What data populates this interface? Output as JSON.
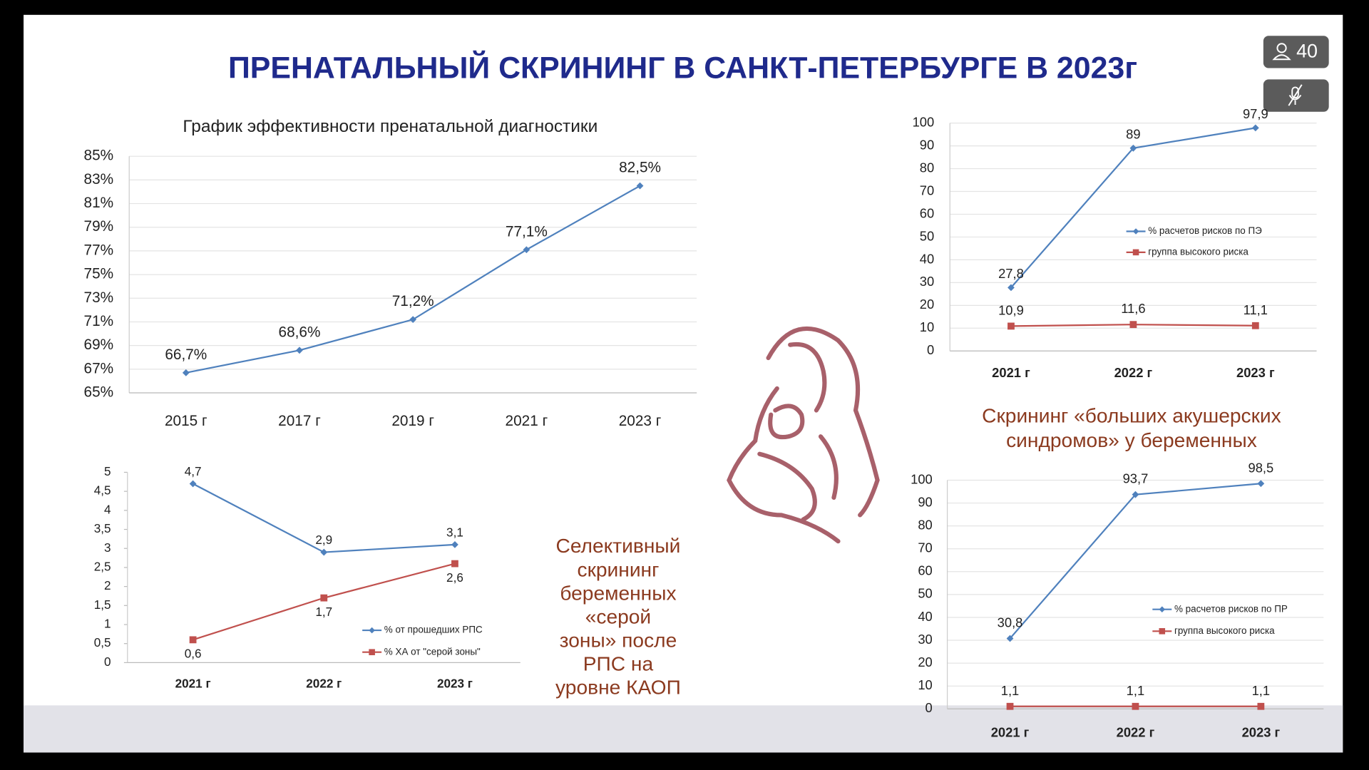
{
  "slide": {
    "title": "ПРЕНАТАЛЬНЫЙ СКРИНИНГ В САНКТ-ПЕТЕРБУРГЕ В 2023г",
    "captions": [
      {
        "lines": [
          "Скрининг «больших акушерских",
          "синдромов» у беременных"
        ]
      },
      {
        "lines": [
          "Селективный",
          "скрининг",
          "беременных",
          "«серой",
          "зоны» после",
          "РПС на",
          "уровне КАОП"
        ]
      }
    ]
  },
  "ui": {
    "participants": "40"
  },
  "chart_data": [
    {
      "type": "line",
      "title": "График эффективности пренатальной диагностики",
      "categories": [
        "2015 г",
        "2017 г",
        "2019 г",
        "2021 г",
        "2023 г"
      ],
      "values": [
        66.7,
        68.6,
        71.2,
        77.1,
        82.5
      ],
      "value_labels": [
        "66,7%",
        "68,6%",
        "71,2%",
        "77,1%",
        "82,5%"
      ],
      "color": "#4f81bd",
      "ylim": [
        65,
        85
      ],
      "yticks": [
        {
          "value": 65,
          "label": "65%"
        },
        {
          "value": 67,
          "label": "67%"
        },
        {
          "value": 69,
          "label": "69%"
        },
        {
          "value": 71,
          "label": "71%"
        },
        {
          "value": 73,
          "label": "73%"
        },
        {
          "value": 75,
          "label": "75%"
        },
        {
          "value": 77,
          "label": "77%"
        },
        {
          "value": 79,
          "label": "79%"
        },
        {
          "value": 81,
          "label": "81%"
        },
        {
          "value": 83,
          "label": "83%"
        },
        {
          "value": 85,
          "label": "85%"
        }
      ],
      "grid": true
    },
    {
      "type": "line",
      "categories": [
        "2021 г",
        "2022 г",
        "2023 г"
      ],
      "series": [
        {
          "name": "% расчетов рисков по ПЭ",
          "color": "#4f81bd",
          "values": [
            27.8,
            89,
            97.9
          ],
          "value_labels": [
            "27,8",
            "89",
            "97,9"
          ]
        },
        {
          "name": "группа высокого риска",
          "color": "#c0504d",
          "values": [
            10.9,
            11.6,
            11.1
          ],
          "value_labels": [
            "10,9",
            "11,6",
            "11,1"
          ]
        }
      ],
      "ylim": [
        0,
        100
      ],
      "yticks": [
        0,
        10,
        20,
        30,
        40,
        50,
        60,
        70,
        80,
        90,
        100
      ],
      "grid": true
    },
    {
      "type": "line",
      "categories": [
        "2021 г",
        "2022 г",
        "2023 г"
      ],
      "series": [
        {
          "name": "% от прошедших РПС",
          "color": "#4f81bd",
          "values": [
            4.7,
            2.9,
            3.1
          ],
          "value_labels": [
            "4,7",
            "2,9",
            "3,1"
          ]
        },
        {
          "name": "% ХА от \"серой зоны\"",
          "color": "#c0504d",
          "values": [
            0.6,
            1.7,
            2.6
          ],
          "value_labels": [
            "0,6",
            "1,7",
            "2,6"
          ]
        }
      ],
      "ylim": [
        0,
        5
      ],
      "yticks": [
        0,
        {
          "value": 0.5,
          "label": "0,5"
        },
        1,
        {
          "value": 1.5,
          "label": "1,5"
        },
        2,
        {
          "value": 2.5,
          "label": "2,5"
        },
        3,
        {
          "value": 3.5,
          "label": "3,5"
        },
        4,
        {
          "value": 4.5,
          "label": "4,5"
        },
        5
      ],
      "grid": false
    },
    {
      "type": "line",
      "categories": [
        "2021 г",
        "2022 г",
        "2023 г"
      ],
      "series": [
        {
          "name": "% расчетов рисков по ПР",
          "color": "#4f81bd",
          "values": [
            30.8,
            93.7,
            98.5
          ],
          "value_labels": [
            "30,8",
            "93,7",
            "98,5"
          ]
        },
        {
          "name": "группа высокого риска",
          "color": "#c0504d",
          "values": [
            1.1,
            1.1,
            1.1
          ],
          "value_labels": [
            "1,1",
            "1,1",
            "1,1"
          ]
        }
      ],
      "ylim": [
        0,
        100
      ],
      "yticks": [
        0,
        10,
        20,
        30,
        40,
        50,
        60,
        70,
        80,
        90,
        100
      ],
      "grid": true
    }
  ]
}
